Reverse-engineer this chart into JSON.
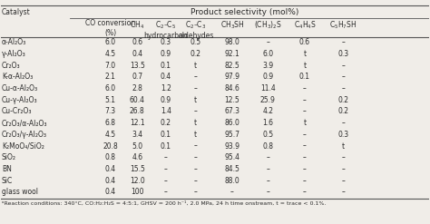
{
  "title_row": [
    "Catalyst",
    "Product selectivity (mol%)"
  ],
  "header_row1": [
    "",
    "CO conversion\n(%)",
    "CH₄",
    "C₂–C₅\nhydrocarbon",
    "C₂–C₃\naldehydes",
    "CH₃SH",
    "(CH₃)₂S",
    "C₄H₄S",
    "C₅H₇SH"
  ],
  "rows": [
    [
      "α-Al₂O₃",
      "6.0",
      "0.6",
      "0.3",
      "0.5",
      "98.0",
      "–",
      "0.6",
      "–"
    ],
    [
      "γ-Al₂O₃",
      "4.5",
      "0.4",
      "0.9",
      "0.2",
      "92.1",
      "6.0",
      "t",
      "0.3"
    ],
    [
      "Cr₂O₃",
      "7.0",
      "13.5",
      "0.1",
      "t",
      "82.5",
      "3.9",
      "t",
      "–"
    ],
    [
      "K-α-Al₂O₃",
      "2.1",
      "0.7",
      "0.4",
      "–",
      "97.9",
      "0.9",
      "0.1",
      "–"
    ],
    [
      "Cu-α-Al₂O₃",
      "6.0",
      "2.8",
      "1.2",
      "–",
      "84.6",
      "11.4",
      "–",
      "–"
    ],
    [
      "Cu-γ-Al₂O₃",
      "5.1",
      "60.4",
      "0.9",
      "t",
      "12.5",
      "25.9",
      "–",
      "0.2"
    ],
    [
      "Cu-Cr₂O₃",
      "7.3",
      "26.8",
      "1.4",
      "–",
      "67.3",
      "4.2",
      "–",
      "0.2"
    ],
    [
      "Cr₂O₃/α-Al₂O₃",
      "6.8",
      "12.1",
      "0.2",
      "t",
      "86.0",
      "1.6",
      "t",
      "–"
    ],
    [
      "Cr₂O₃/γ-Al₂O₃",
      "4.5",
      "3.4",
      "0.1",
      "t",
      "95.7",
      "0.5",
      "–",
      "0.3"
    ],
    [
      "K₂MoO₄/SiO₂",
      "20.8",
      "5.0",
      "0.1",
      "–",
      "93.9",
      "0.8",
      "–",
      "t"
    ],
    [
      "SiO₂",
      "0.8",
      "4.6",
      "–",
      "–",
      "95.4",
      "–",
      "–",
      "–"
    ],
    [
      "BN",
      "0.4",
      "15.5",
      "–",
      "–",
      "84.5",
      "–",
      "–",
      "–"
    ],
    [
      "SiC",
      "0.4",
      "12.0",
      "–",
      "–",
      "88.0",
      "–",
      "–",
      "–"
    ],
    [
      "glass wool",
      "0.4",
      "100",
      "–",
      "–",
      "–",
      "–",
      "–",
      "–"
    ]
  ],
  "footnote": "ᵃReaction conditions: 340°C, CO:H₂:H₂S = 4:5:1, GHSV = 200 h⁻¹, 2.0 MPa, 24 h time onstream, t = trace < 0.1%.",
  "bg_color": "#f0ede8",
  "text_color": "#2a2a2a",
  "line_color": "#555555",
  "fontsize": 5.5,
  "title_fontsize": 6.5
}
